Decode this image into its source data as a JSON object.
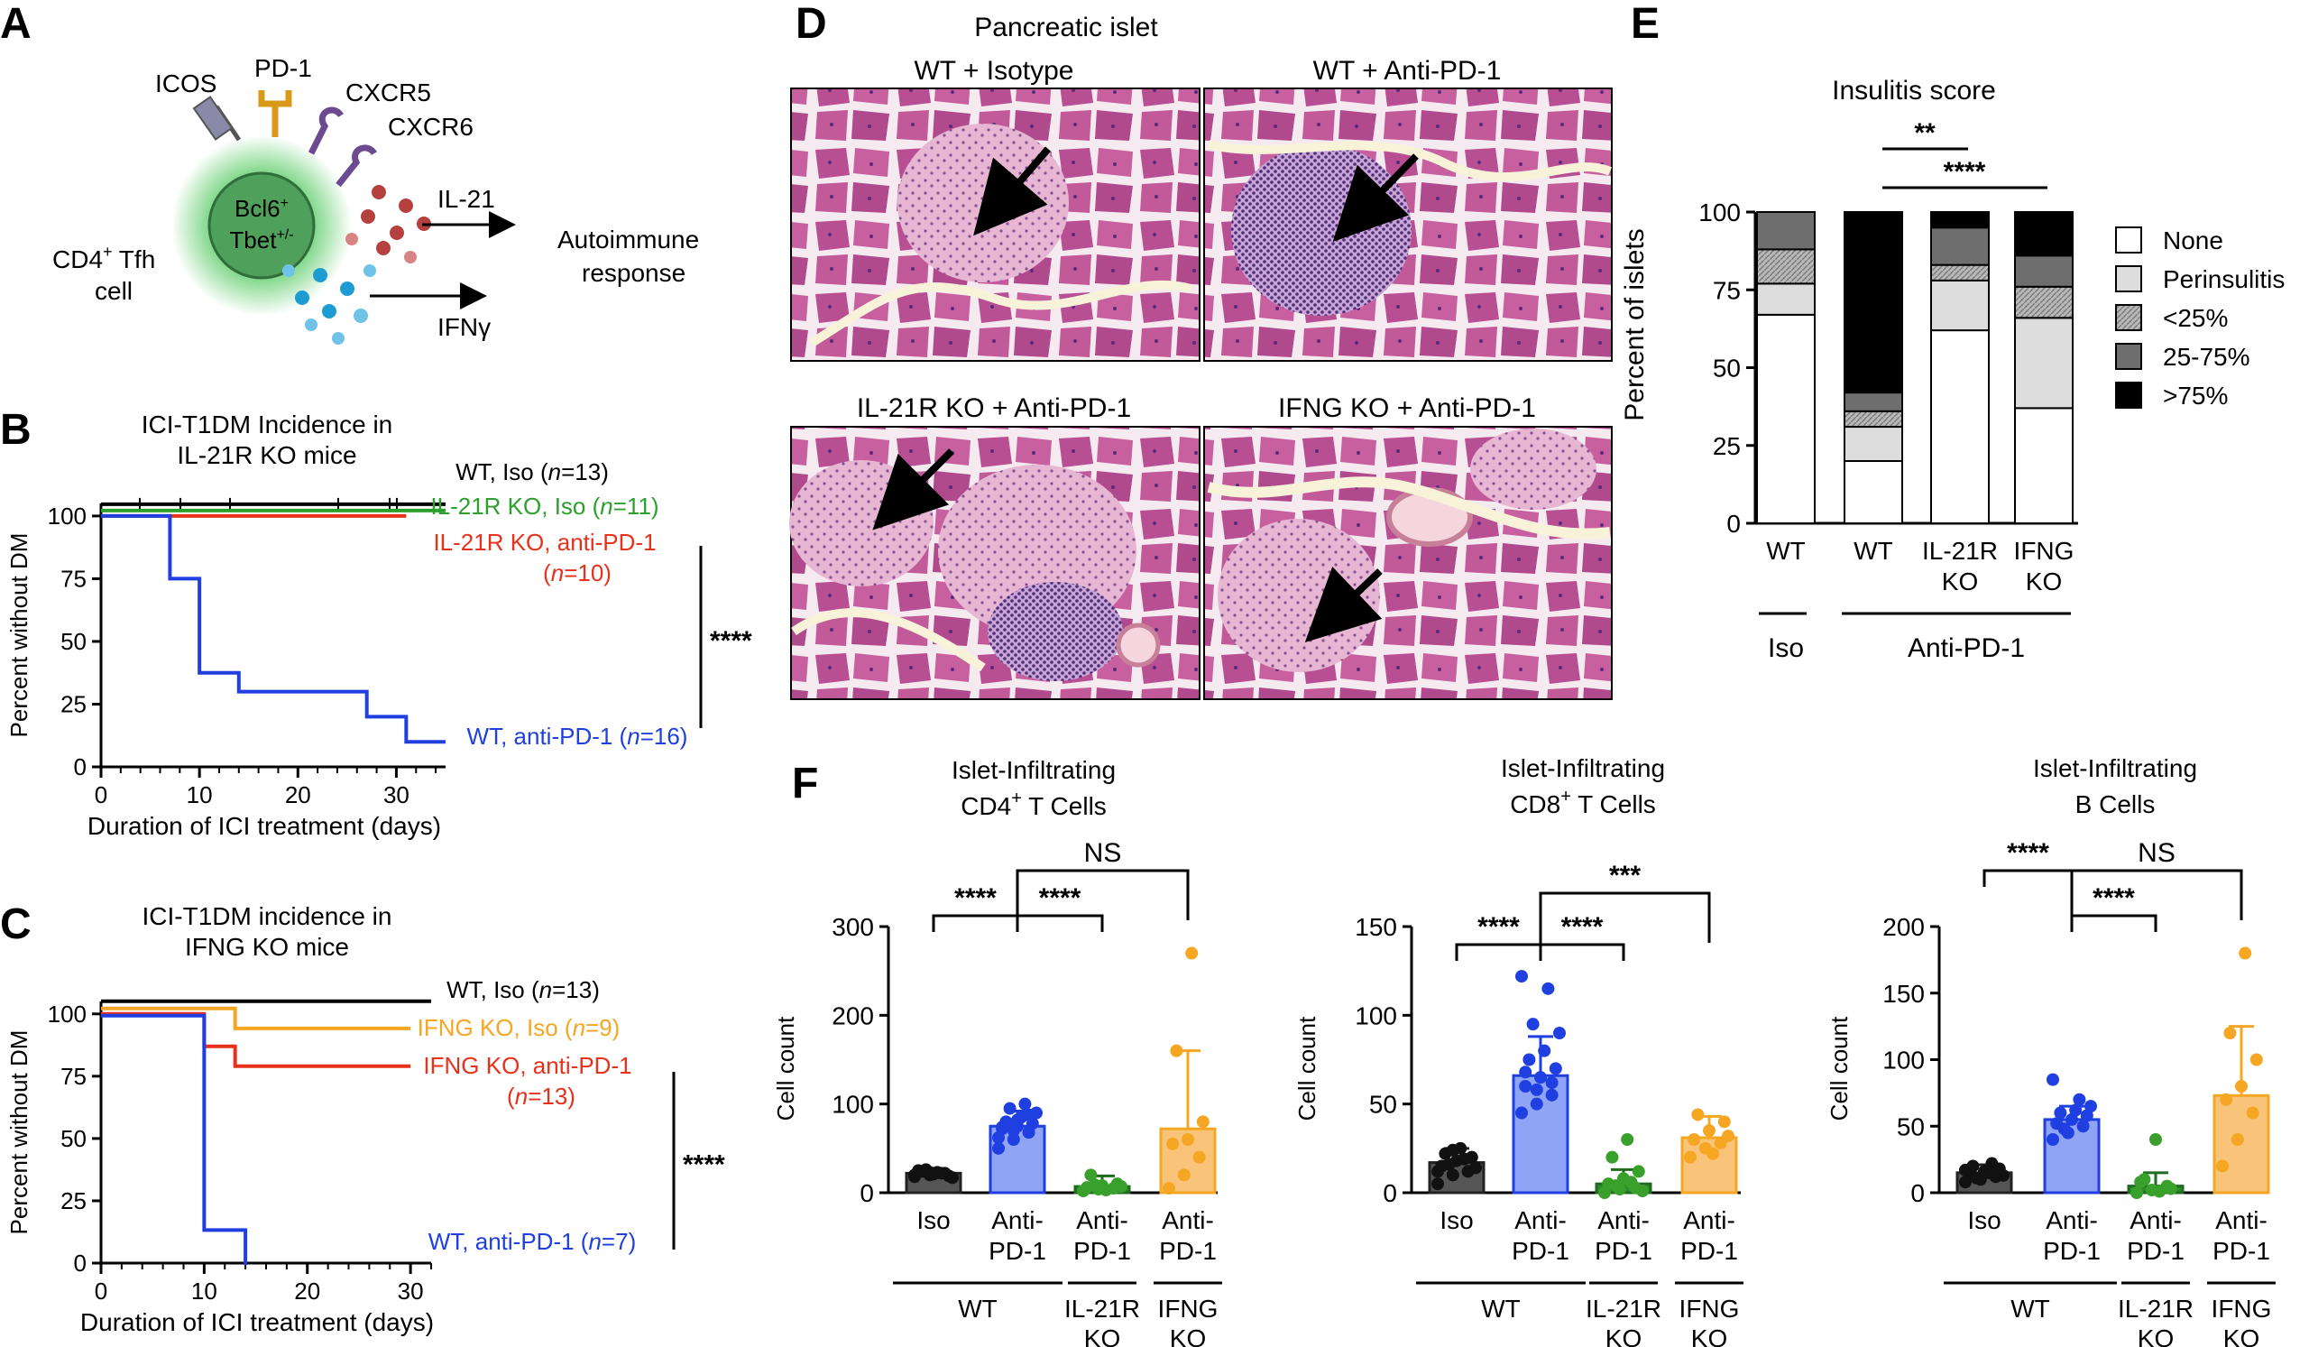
{
  "panels": {
    "A": {
      "letter": "A",
      "molecules": [
        "ICOS",
        "PD-1",
        "CXCR5",
        "CXCR6"
      ],
      "nucleus_line1": "Bcl6",
      "nucleus_line1_sup": "+",
      "nucleus_line2": "Tbet",
      "nucleus_line2_sup": "+/-",
      "cell_label_line1": "CD4",
      "cell_label_sup": "+",
      "cell_label_line1_rest": " Tfh",
      "cell_label_line2": "cell",
      "cytokine_1": "IL-21",
      "cytokine_2": "IFNγ",
      "outcome_line1": "Autoimmune",
      "outcome_line2": "response"
    },
    "B": {
      "letter": "B"
    },
    "C": {
      "letter": "C"
    },
    "D": {
      "letter": "D",
      "title": "Pancreatic islet",
      "images": [
        "WT + Isotype",
        "WT + Anti-PD-1",
        "IL-21R KO + Anti-PD-1",
        "IFNG KO + Anti-PD-1"
      ]
    },
    "E": {
      "letter": "E"
    },
    "F": {
      "letter": "F"
    }
  },
  "colors": {
    "black": "#000000",
    "green": "#2ca02c",
    "red": "#e8311a",
    "blue": "#1f3fe0",
    "orange": "#f5a623",
    "bar_gray": "#555555",
    "bar_blue": "#8fa4f5",
    "bar_green": "#2e8b2e",
    "bar_orange": "#f9c37a",
    "tissue_pink": "#c9609e",
    "tissue_light": "#eec7dd",
    "tissue_bg": "#f5edf1"
  },
  "chart_data": [
    {
      "id": "B",
      "type": "line",
      "step": true,
      "title_lines": [
        "ICI-T1DM Incidence in",
        "IL-21R KO mice"
      ],
      "xlabel": "Duration of ICI treatment (days)",
      "ylabel": "Percent without DM",
      "xlim": [
        0,
        35
      ],
      "ylim": [
        0,
        105
      ],
      "xticks": [
        0,
        10,
        20,
        30
      ],
      "yticks": [
        0,
        25,
        50,
        75,
        100
      ],
      "significance": "****",
      "series": [
        {
          "label_parts": [
            "WT, Iso (",
            "n",
            "=13)"
          ],
          "color": "#000000",
          "x": [
            0,
            35
          ],
          "y": [
            100,
            100
          ]
        },
        {
          "label_parts": [
            "IL-21R KO, Iso (",
            "n",
            "=11)"
          ],
          "color": "#2ca02c",
          "x": [
            0,
            35
          ],
          "y": [
            100,
            100
          ]
        },
        {
          "label_parts": [
            "IL-21R KO, anti-PD-1",
            "",
            ""
          ],
          "label_line2_parts": [
            "(",
            "n",
            "=10)"
          ],
          "color": "#e8311a",
          "x": [
            0,
            31
          ],
          "y": [
            100,
            100
          ]
        },
        {
          "label_parts": [
            "WT, anti-PD-1 (",
            "n",
            "=16)"
          ],
          "color": "#1f3fe0",
          "x": [
            0,
            7,
            7,
            10,
            10,
            14,
            14,
            27,
            27,
            31,
            31,
            35
          ],
          "y": [
            100,
            100,
            75,
            75,
            37.5,
            37.5,
            30,
            30,
            20,
            20,
            10,
            10
          ]
        }
      ]
    },
    {
      "id": "C",
      "type": "line",
      "step": true,
      "title_lines": [
        "ICI-T1DM incidence in",
        "IFNG KO mice"
      ],
      "xlabel": "Duration of ICI treatment (days)",
      "ylabel": "Percent without DM",
      "xlim": [
        0,
        32
      ],
      "ylim": [
        0,
        105
      ],
      "xticks": [
        0,
        10,
        20,
        30
      ],
      "yticks": [
        0,
        25,
        50,
        75,
        100
      ],
      "significance": "****",
      "series": [
        {
          "label_parts": [
            "WT, Iso (",
            "n",
            "=13)"
          ],
          "color": "#000000",
          "x": [
            0,
            32
          ],
          "y": [
            100,
            100
          ]
        },
        {
          "label_parts": [
            "IFNG KO, Iso (",
            "n",
            "=9)"
          ],
          "color": "#f5a623",
          "x": [
            0,
            13,
            13,
            30
          ],
          "y": [
            100,
            100,
            92,
            92
          ]
        },
        {
          "label_parts": [
            "IFNG KO, anti-PD-1",
            "",
            ""
          ],
          "label_line2_parts": [
            "(",
            "n",
            "=13)"
          ],
          "color": "#e8311a",
          "x": [
            0,
            10,
            10,
            13,
            13,
            30
          ],
          "y": [
            100,
            100,
            87,
            87,
            79,
            79
          ]
        },
        {
          "label_parts": [
            "WT, anti-PD-1 (",
            "n",
            "=7)"
          ],
          "color": "#1f3fe0",
          "x": [
            0,
            10,
            10,
            14,
            14
          ],
          "y": [
            100,
            100,
            14,
            14,
            0
          ]
        }
      ]
    },
    {
      "id": "E",
      "type": "bar",
      "stacked": true,
      "title": "Insulitis score",
      "ylabel": "Percent of islets",
      "ylim": [
        0,
        100
      ],
      "yticks": [
        0,
        25,
        50,
        75,
        100
      ],
      "categories": [
        "WT",
        "WT",
        "IL-21R|KO",
        "IFNG|KO"
      ],
      "groups": [
        {
          "label": "Iso",
          "span": [
            0,
            0
          ]
        },
        {
          "label": "Anti-PD-1",
          "span": [
            1,
            3
          ]
        }
      ],
      "series": [
        {
          "name": "None",
          "fill": "#ffffff",
          "values": [
            67,
            20,
            62,
            37
          ]
        },
        {
          "name": "Perinsulitis",
          "fill": "#dddddd",
          "values": [
            10,
            11,
            16,
            29
          ]
        },
        {
          "name": "<25%",
          "fill": "#a8a8a8",
          "values": [
            11,
            5,
            5,
            10
          ]
        },
        {
          "name": "25-75%",
          "fill": "#6e6e6e",
          "values": [
            12,
            6,
            12,
            10
          ]
        },
        {
          "name": ">75%",
          "fill": "#000000",
          "values": [
            0,
            58,
            5,
            14
          ]
        }
      ],
      "significance": [
        {
          "from": 1,
          "to": 2,
          "label": "**"
        },
        {
          "from": 1,
          "to": 3,
          "label": "****"
        }
      ]
    },
    {
      "id": "F1",
      "type": "bar",
      "title_lines": [
        "Islet-Infiltrating",
        "CD4|+| T Cells"
      ],
      "ylabel": "Cell count",
      "ylim": [
        0,
        300
      ],
      "yticks": [
        0,
        100,
        200,
        300
      ],
      "categories": [
        "Iso",
        "Anti-|PD-1",
        "Anti-|PD-1",
        "Anti-|PD-1"
      ],
      "groups": [
        {
          "label": "WT",
          "span": [
            0,
            1
          ]
        },
        {
          "label": "IL-21R|KO",
          "span": [
            2,
            2
          ]
        },
        {
          "label": "IFNG|KO",
          "span": [
            3,
            3
          ]
        }
      ],
      "means": [
        22,
        75,
        7,
        72
      ],
      "errors": [
        5,
        17,
        12,
        88
      ],
      "points": [
        [
          18,
          20,
          22,
          25,
          21,
          19,
          24,
          23,
          17,
          26,
          22,
          20,
          23
        ],
        [
          50,
          60,
          68,
          72,
          75,
          78,
          80,
          85,
          90,
          95,
          100,
          62,
          70,
          88,
          74,
          82
        ],
        [
          2,
          4,
          5,
          6,
          8,
          10,
          20,
          3,
          7,
          9
        ],
        [
          5,
          20,
          40,
          55,
          60,
          80,
          160,
          270
        ]
      ],
      "significance": [
        {
          "from": 0,
          "to": 1,
          "label": "****"
        },
        {
          "from": 1,
          "to": 2,
          "label": "****"
        },
        {
          "from": 1,
          "to": 3,
          "label": "NS"
        }
      ]
    },
    {
      "id": "F2",
      "type": "bar",
      "title_lines": [
        "Islet-Infiltrating",
        "CD8|+| T Cells"
      ],
      "ylabel": "Cell count",
      "ylim": [
        0,
        150
      ],
      "yticks": [
        0,
        50,
        100,
        150
      ],
      "categories": [
        "Iso",
        "Anti-|PD-1",
        "Anti-|PD-1",
        "Anti-|PD-1"
      ],
      "groups": [
        {
          "label": "WT",
          "span": [
            0,
            1
          ]
        },
        {
          "label": "IL-21R|KO",
          "span": [
            2,
            2
          ]
        },
        {
          "label": "IFNG|KO",
          "span": [
            3,
            3
          ]
        }
      ],
      "means": [
        17,
        66,
        5,
        31
      ],
      "errors": [
        8,
        22,
        8,
        12
      ],
      "points": [
        [
          5,
          10,
          12,
          15,
          18,
          20,
          22,
          25,
          14,
          16,
          19,
          12,
          24
        ],
        [
          45,
          50,
          55,
          60,
          65,
          70,
          75,
          80,
          90,
          95,
          115,
          122,
          58,
          62,
          68
        ],
        [
          0,
          2,
          3,
          5,
          8,
          12,
          20,
          30,
          1,
          4,
          6
        ],
        [
          20,
          25,
          28,
          30,
          35,
          40,
          44,
          22,
          32
        ]
      ],
      "significance": [
        {
          "from": 0,
          "to": 1,
          "label": "****"
        },
        {
          "from": 1,
          "to": 2,
          "label": "****"
        },
        {
          "from": 1,
          "to": 3,
          "label": "***"
        }
      ]
    },
    {
      "id": "F3",
      "type": "bar",
      "title_lines": [
        "Islet-Infiltrating",
        "B Cells"
      ],
      "ylabel": "Cell count",
      "ylim": [
        0,
        200
      ],
      "yticks": [
        0,
        50,
        100,
        150,
        200
      ],
      "categories": [
        "Iso",
        "Anti-|PD-1",
        "Anti-|PD-1",
        "Anti-|PD-1"
      ],
      "groups": [
        {
          "label": "WT",
          "span": [
            0,
            1
          ]
        },
        {
          "label": "IL-21R|KO",
          "span": [
            2,
            2
          ]
        },
        {
          "label": "IFNG|KO",
          "span": [
            3,
            3
          ]
        }
      ],
      "means": [
        15,
        55,
        5,
        73
      ],
      "errors": [
        6,
        10,
        10,
        52
      ],
      "points": [
        [
          8,
          10,
          12,
          14,
          16,
          18,
          20,
          15,
          13,
          11,
          22,
          17
        ],
        [
          40,
          45,
          50,
          52,
          55,
          58,
          60,
          62,
          65,
          48,
          70,
          85
        ],
        [
          0,
          2,
          5,
          8,
          40,
          3,
          10,
          1
        ],
        [
          20,
          40,
          60,
          70,
          80,
          100,
          120,
          180
        ]
      ],
      "significance": [
        {
          "from": 0,
          "to": 1,
          "label": "****"
        },
        {
          "from": 1,
          "to": 2,
          "label": "****"
        },
        {
          "from": 1,
          "to": 3,
          "label": "NS"
        }
      ]
    }
  ]
}
